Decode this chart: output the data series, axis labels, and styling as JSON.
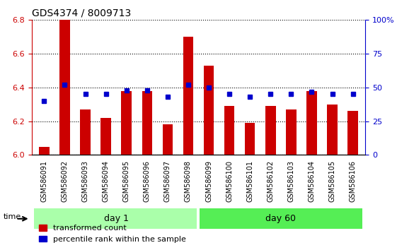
{
  "title": "GDS4374 / 8009713",
  "samples": [
    "GSM586091",
    "GSM586092",
    "GSM586093",
    "GSM586094",
    "GSM586095",
    "GSM586096",
    "GSM586097",
    "GSM586098",
    "GSM586099",
    "GSM586100",
    "GSM586101",
    "GSM586102",
    "GSM586103",
    "GSM586104",
    "GSM586105",
    "GSM586106"
  ],
  "transformed_count": [
    6.05,
    6.8,
    6.27,
    6.22,
    6.38,
    6.38,
    6.18,
    6.7,
    6.53,
    6.29,
    6.19,
    6.29,
    6.27,
    6.38,
    6.3,
    6.26
  ],
  "percentile_rank": [
    40,
    52,
    45,
    45,
    48,
    48,
    43,
    52,
    50,
    45,
    43,
    45,
    45,
    47,
    45,
    45
  ],
  "day1_count": 8,
  "day60_count": 8,
  "ylim_left": [
    6.0,
    6.8
  ],
  "ylim_right": [
    0,
    100
  ],
  "bar_color": "#cc0000",
  "dot_color": "#0000cc",
  "bar_bottom": 6.0,
  "grid_color": "#000000",
  "background_color": "#ffffff",
  "plot_bg": "#ffffff",
  "day1_color": "#aaffaa",
  "day60_color": "#55ee55",
  "xlabel_color": "#cc0000",
  "ylabel_right_color": "#0000cc",
  "legend_red_label": "transformed count",
  "legend_blue_label": "percentile rank within the sample",
  "yticks_left": [
    6.0,
    6.2,
    6.4,
    6.6,
    6.8
  ],
  "yticks_right": [
    0,
    25,
    50,
    75,
    100
  ]
}
